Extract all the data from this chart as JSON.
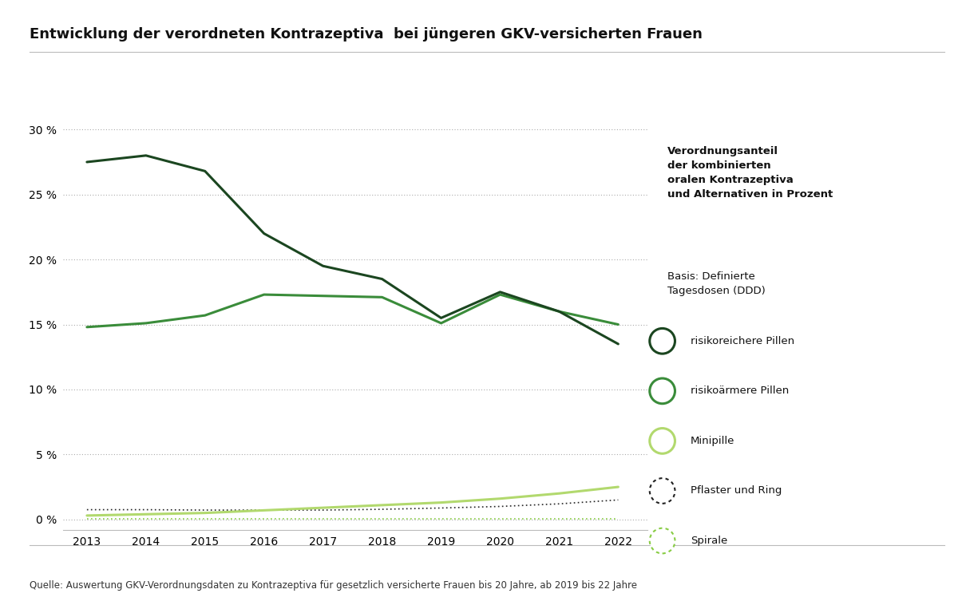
{
  "title": "Entwicklung der verordneten Kontrazeptiva  bei jüngeren GKV-versicherten Frauen",
  "source": "Quelle: Auswertung GKV-Verordnungsdaten zu Kontrazeptiva für gesetzlich versicherte Frauen bis 20 Jahre, ab 2019 bis 22 Jahre",
  "years": [
    2013,
    2014,
    2015,
    2016,
    2017,
    2018,
    2019,
    2020,
    2021,
    2022
  ],
  "series": [
    {
      "key": "risikoreichere_Pillen",
      "label": "risikoreichere Pillen",
      "values": [
        27.5,
        28.0,
        26.8,
        22.0,
        19.5,
        18.5,
        15.5,
        17.5,
        16.0,
        13.5
      ],
      "color": "#1b4620",
      "linewidth": 2.2,
      "linestyle": "solid",
      "zorder": 5,
      "legend_style": "circle_solid"
    },
    {
      "key": "risikoaermere_Pillen",
      "label": "risikoärmere Pillen",
      "values": [
        14.8,
        15.1,
        15.7,
        17.3,
        17.2,
        17.1,
        15.1,
        17.3,
        16.0,
        15.0
      ],
      "color": "#3a8c3a",
      "linewidth": 2.2,
      "linestyle": "solid",
      "zorder": 4,
      "legend_style": "circle_solid"
    },
    {
      "key": "Minipille",
      "label": "Minipille",
      "values": [
        0.3,
        0.4,
        0.5,
        0.7,
        0.9,
        1.1,
        1.3,
        1.6,
        2.0,
        2.5
      ],
      "color": "#b2d96e",
      "linewidth": 2.2,
      "linestyle": "solid",
      "zorder": 3,
      "legend_style": "circle_solid"
    },
    {
      "key": "Pflaster_und_Ring",
      "label": "Pflaster und Ring",
      "values": [
        0.75,
        0.75,
        0.72,
        0.72,
        0.72,
        0.78,
        0.88,
        1.0,
        1.2,
        1.5
      ],
      "color": "#222222",
      "linewidth": 1.2,
      "linestyle": "dotted",
      "zorder": 2,
      "legend_style": "circle_dotted"
    },
    {
      "key": "Spirale",
      "label": "Spirale",
      "values": [
        0.05,
        0.05,
        0.05,
        0.05,
        0.05,
        0.05,
        0.05,
        0.05,
        0.05,
        0.05
      ],
      "color": "#88cc44",
      "linewidth": 1.2,
      "linestyle": "dotted",
      "zorder": 1,
      "legend_style": "circle_dotted"
    }
  ],
  "legend_header_bold": "Verordnungsanteil\nder kombinierten\noralen Kontrazeptiva\nund Alternativen in Prozent",
  "legend_header_normal": "Basis: Definierte\nTagesdosen (DDD)",
  "ylim": [
    -0.8,
    32.0
  ],
  "yticks": [
    0,
    5,
    10,
    15,
    20,
    25,
    30
  ],
  "ytick_labels": [
    "0 %",
    "5 %",
    "10 %",
    "15 %",
    "20 %",
    "25 %",
    "30 %"
  ],
  "background_color": "#ffffff",
  "grid_color": "#aaaaaa",
  "title_fontsize": 13,
  "axis_fontsize": 10,
  "legend_fontsize": 9.5,
  "source_fontsize": 8.5
}
